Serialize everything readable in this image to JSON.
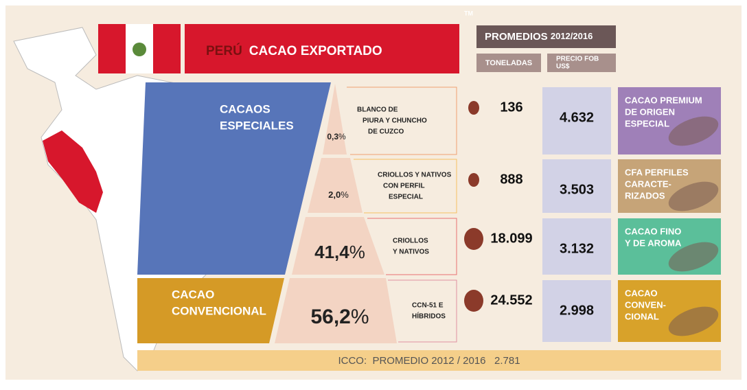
{
  "trademark": "TM",
  "header": {
    "country": "PERÚ",
    "title": "CACAO EXPORTADO"
  },
  "averages": {
    "title": "PROMEDIOS",
    "period": "2012/2016",
    "tons_label": "TONELADAS",
    "price_label": [
      "PRECIO FOB",
      "US$"
    ]
  },
  "groups": [
    [
      "CACAOS",
      "ESPECIALES"
    ],
    [
      "CACAO",
      "CONVENCIONAL"
    ]
  ],
  "percent_sign": "%",
  "rows": [
    {
      "share": "0,3",
      "label": [
        "BLANCO DE",
        "PIURA Y CHUNCHO",
        "DE CUZCO"
      ],
      "tons": "136",
      "price": "4.632",
      "type": [
        "CACAO PREMIUM",
        "DE ORIGEN",
        "ESPECIAL"
      ]
    },
    {
      "share": "2,0",
      "label": [
        "CRIOLLOS Y NATIVOS",
        "CON PERFIL",
        "ESPECIAL"
      ],
      "tons": "888",
      "price": "3.503",
      "type": [
        "CFA PERFILES",
        "CARACTE-",
        "RIZADOS"
      ]
    },
    {
      "share": "41,4",
      "label": [
        "CRIOLLOS",
        "Y NATIVOS"
      ],
      "tons": "18.099",
      "price": "3.132",
      "type": [
        "CACAO FINO",
        "Y DE AROMA"
      ]
    },
    {
      "share": "56,2",
      "label": [
        "CCN-51 E",
        "HÍBRIDOS"
      ],
      "tons": "24.552",
      "price": "2.998",
      "type": [
        "CACAO",
        "CONVEN-",
        "CIONAL"
      ]
    }
  ],
  "footer": "ICCO:  PROMEDIO 2012 / 2016   2.781"
}
